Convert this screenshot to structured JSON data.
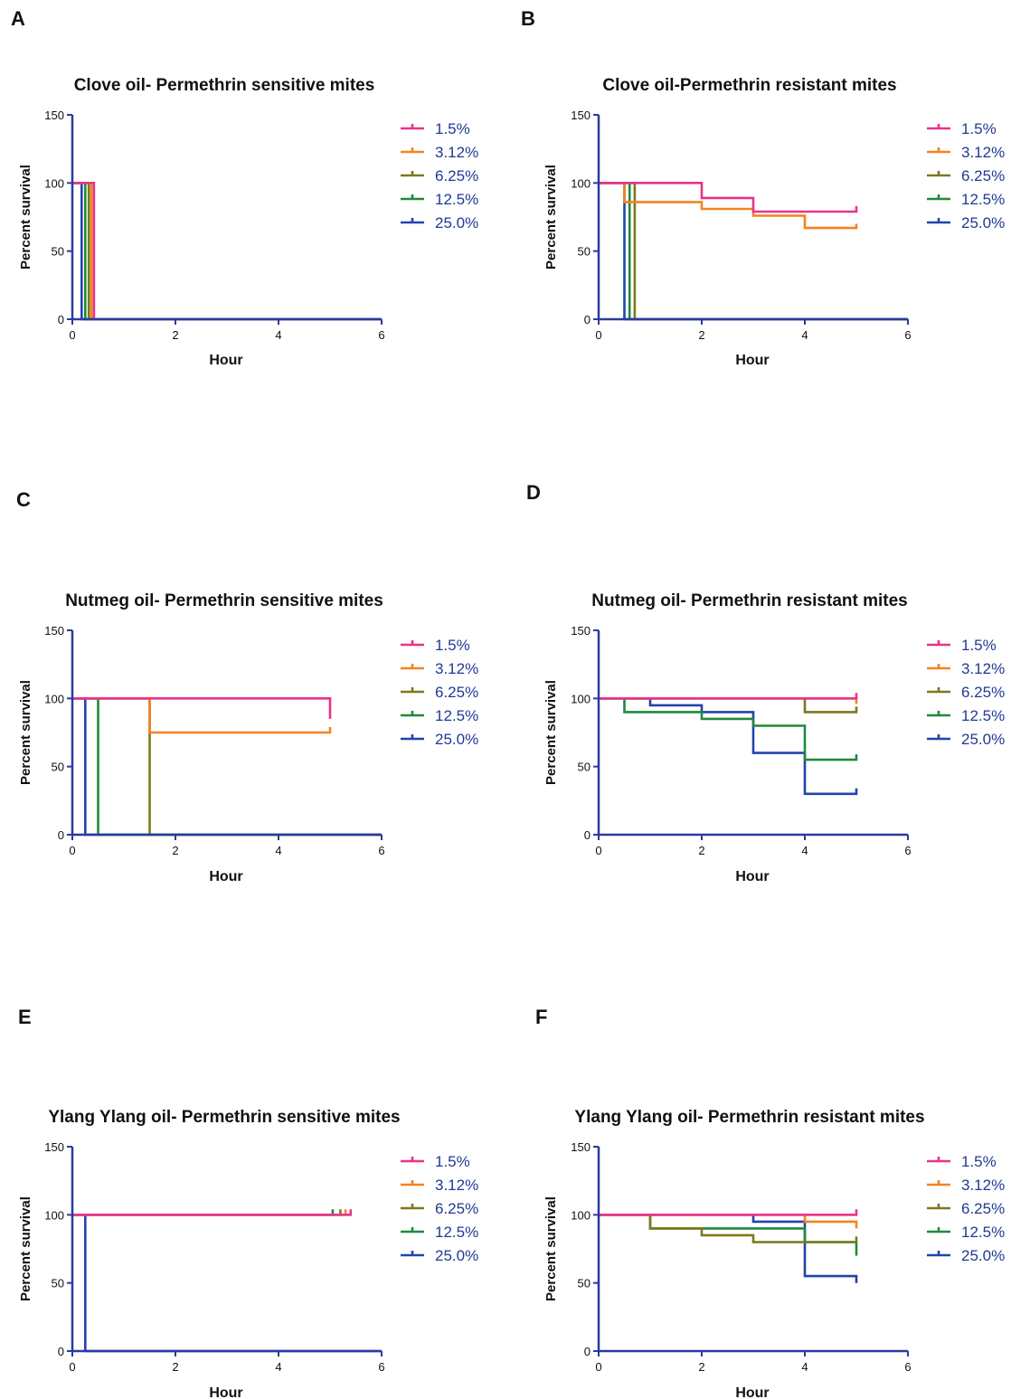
{
  "colors": {
    "axis": "#2a3aa0",
    "series": {
      "1.5%": "#e8338a",
      "3.12%": "#f58220",
      "6.25%": "#7a7a1e",
      "12.5%": "#1e8a3c",
      "25.0%": "#2244aa"
    }
  },
  "chart_data": [
    {
      "panel": "A",
      "type": "line",
      "title": "Clove oil- Permethrin sensitive mites",
      "xlabel": "Hour",
      "ylabel": "Percent survival",
      "xlim": [
        0,
        6
      ],
      "ylim": [
        0,
        150
      ],
      "xticks": [
        "0",
        "2",
        "4",
        "6"
      ],
      "yticks": [
        "0",
        "50",
        "100",
        "150"
      ],
      "legend_position": "right",
      "series": [
        {
          "name": "1.5%",
          "points": [
            [
              0,
              100
            ],
            [
              0.42,
              100
            ],
            [
              0.42,
              0
            ],
            [
              6,
              0
            ]
          ]
        },
        {
          "name": "3.12%",
          "points": [
            [
              0,
              100
            ],
            [
              0.37,
              100
            ],
            [
              0.37,
              0
            ],
            [
              6,
              0
            ]
          ]
        },
        {
          "name": "6.25%",
          "points": [
            [
              0,
              100
            ],
            [
              0.32,
              100
            ],
            [
              0.32,
              0
            ],
            [
              6,
              0
            ]
          ]
        },
        {
          "name": "12.5%",
          "points": [
            [
              0,
              100
            ],
            [
              0.25,
              100
            ],
            [
              0.25,
              0
            ],
            [
              6,
              0
            ]
          ]
        },
        {
          "name": "25.0%",
          "points": [
            [
              0,
              100
            ],
            [
              0.18,
              100
            ],
            [
              0.18,
              0
            ],
            [
              6,
              0
            ]
          ]
        }
      ]
    },
    {
      "panel": "B",
      "type": "line",
      "title": "Clove oil-Permethrin resistant mites",
      "xlabel": "Hour",
      "ylabel": "Percent survival",
      "xlim": [
        0,
        6
      ],
      "ylim": [
        0,
        150
      ],
      "xticks": [
        "0",
        "2",
        "4",
        "6"
      ],
      "yticks": [
        "0",
        "50",
        "100",
        "150"
      ],
      "legend_position": "right",
      "series": [
        {
          "name": "1.5%",
          "points": [
            [
              0,
              100
            ],
            [
              2,
              100
            ],
            [
              2,
              89
            ],
            [
              3,
              89
            ],
            [
              3,
              79
            ],
            [
              5,
              79
            ],
            [
              5,
              83
            ]
          ]
        },
        {
          "name": "3.12%",
          "points": [
            [
              0,
              100
            ],
            [
              0.5,
              100
            ],
            [
              0.5,
              86
            ],
            [
              2,
              86
            ],
            [
              2,
              81
            ],
            [
              3,
              81
            ],
            [
              3,
              76
            ],
            [
              4,
              76
            ],
            [
              4,
              67
            ],
            [
              5,
              67
            ],
            [
              5,
              70
            ]
          ]
        },
        {
          "name": "6.25%",
          "points": [
            [
              0,
              100
            ],
            [
              0.7,
              100
            ],
            [
              0.7,
              0
            ],
            [
              6,
              0
            ]
          ]
        },
        {
          "name": "12.5%",
          "points": [
            [
              0,
              100
            ],
            [
              0.6,
              100
            ],
            [
              0.6,
              0
            ],
            [
              6,
              0
            ]
          ]
        },
        {
          "name": "25.0%",
          "points": [
            [
              0,
              100
            ],
            [
              0.5,
              100
            ],
            [
              0.5,
              0
            ],
            [
              6,
              0
            ]
          ]
        }
      ]
    },
    {
      "panel": "C",
      "type": "line",
      "title": "Nutmeg oil- Permethrin sensitive mites",
      "xlabel": "Hour",
      "ylabel": "Percent survival",
      "xlim": [
        0,
        6
      ],
      "ylim": [
        0,
        150
      ],
      "xticks": [
        "0",
        "2",
        "4",
        "6"
      ],
      "yticks": [
        "0",
        "50",
        "100",
        "150"
      ],
      "legend_position": "right",
      "series": [
        {
          "name": "1.5%",
          "points": [
            [
              0,
              100
            ],
            [
              5,
              100
            ],
            [
              5,
              85
            ]
          ]
        },
        {
          "name": "3.12%",
          "points": [
            [
              0,
              100
            ],
            [
              1.5,
              100
            ],
            [
              1.5,
              75
            ],
            [
              5,
              75
            ],
            [
              5,
              79
            ]
          ]
        },
        {
          "name": "6.25%",
          "points": [
            [
              0,
              100
            ],
            [
              1.5,
              100
            ],
            [
              1.5,
              0
            ],
            [
              6,
              0
            ]
          ]
        },
        {
          "name": "12.5%",
          "points": [
            [
              0,
              100
            ],
            [
              0.5,
              100
            ],
            [
              0.5,
              0
            ],
            [
              6,
              0
            ]
          ]
        },
        {
          "name": "25.0%",
          "points": [
            [
              0,
              100
            ],
            [
              0.25,
              100
            ],
            [
              0.25,
              0
            ],
            [
              6,
              0
            ]
          ]
        }
      ]
    },
    {
      "panel": "D",
      "type": "line",
      "title": "Nutmeg oil- Permethrin resistant mites",
      "xlabel": "Hour",
      "ylabel": "Percent survival",
      "xlim": [
        0,
        6
      ],
      "ylim": [
        0,
        150
      ],
      "xticks": [
        "0",
        "2",
        "4",
        "6"
      ],
      "yticks": [
        "0",
        "50",
        "100",
        "150"
      ],
      "legend_position": "right",
      "series": [
        {
          "name": "1.5%",
          "points": [
            [
              0,
              100
            ],
            [
              5,
              100
            ],
            [
              5,
              104
            ]
          ]
        },
        {
          "name": "3.12%",
          "points": [
            [
              0,
              100
            ],
            [
              5,
              100
            ],
            [
              5,
              96
            ]
          ]
        },
        {
          "name": "6.25%",
          "points": [
            [
              0,
              100
            ],
            [
              4,
              100
            ],
            [
              4,
              90
            ],
            [
              5,
              90
            ],
            [
              5,
              94
            ]
          ]
        },
        {
          "name": "12.5%",
          "points": [
            [
              0,
              100
            ],
            [
              0.5,
              100
            ],
            [
              0.5,
              90
            ],
            [
              2,
              90
            ],
            [
              2,
              85
            ],
            [
              3,
              85
            ],
            [
              3,
              80
            ],
            [
              4,
              80
            ],
            [
              4,
              55
            ],
            [
              5,
              55
            ],
            [
              5,
              59
            ]
          ]
        },
        {
          "name": "25.0%",
          "points": [
            [
              0,
              100
            ],
            [
              1,
              100
            ],
            [
              1,
              95
            ],
            [
              2,
              95
            ],
            [
              2,
              90
            ],
            [
              3,
              90
            ],
            [
              3,
              60
            ],
            [
              4,
              60
            ],
            [
              4,
              30
            ],
            [
              5,
              30
            ],
            [
              5,
              34
            ]
          ]
        }
      ]
    },
    {
      "panel": "E",
      "type": "line",
      "title": "Ylang Ylang oil- Permethrin sensitive mites",
      "xlabel": "Hour",
      "ylabel": "Percent survival",
      "xlim": [
        0,
        6
      ],
      "ylim": [
        0,
        150
      ],
      "xticks": [
        "0",
        "2",
        "4",
        "6"
      ],
      "yticks": [
        "0",
        "50",
        "100",
        "150"
      ],
      "legend_position": "right",
      "series": [
        {
          "name": "1.5%",
          "points": [
            [
              0,
              100
            ],
            [
              5.4,
              100
            ],
            [
              5.4,
              104
            ]
          ]
        },
        {
          "name": "3.12%",
          "points": [
            [
              0,
              100
            ],
            [
              5.3,
              100
            ],
            [
              5.3,
              104
            ]
          ]
        },
        {
          "name": "6.25%",
          "points": [
            [
              0,
              100
            ],
            [
              5.2,
              100
            ],
            [
              5.2,
              104
            ]
          ]
        },
        {
          "name": "12.5%",
          "points": [
            [
              0,
              100
            ],
            [
              5.05,
              100
            ],
            [
              5.05,
              104
            ]
          ]
        },
        {
          "name": "25.0%",
          "points": [
            [
              0,
              100
            ],
            [
              0.25,
              100
            ],
            [
              0.25,
              0
            ],
            [
              6,
              0
            ]
          ]
        }
      ]
    },
    {
      "panel": "F",
      "type": "line",
      "title": "Ylang Ylang oil- Permethrin resistant mites",
      "xlabel": "Hour",
      "ylabel": "Percent survival",
      "xlim": [
        0,
        6
      ],
      "ylim": [
        0,
        150
      ],
      "xticks": [
        "0",
        "2",
        "4",
        "6"
      ],
      "yticks": [
        "0",
        "50",
        "100",
        "150"
      ],
      "legend_position": "right",
      "series": [
        {
          "name": "1.5%",
          "points": [
            [
              0,
              100
            ],
            [
              5,
              100
            ],
            [
              5,
              104
            ]
          ]
        },
        {
          "name": "3.12%",
          "points": [
            [
              0,
              100
            ],
            [
              4,
              100
            ],
            [
              4,
              95
            ],
            [
              5,
              95
            ],
            [
              5,
              90
            ]
          ]
        },
        {
          "name": "6.25%",
          "points": [
            [
              0,
              100
            ],
            [
              1,
              100
            ],
            [
              1,
              90
            ],
            [
              2,
              90
            ],
            [
              2,
              85
            ],
            [
              3,
              85
            ],
            [
              3,
              80
            ],
            [
              5,
              80
            ],
            [
              5,
              84
            ]
          ]
        },
        {
          "name": "12.5%",
          "points": [
            [
              0,
              100
            ],
            [
              1,
              100
            ],
            [
              1,
              90
            ],
            [
              4,
              90
            ],
            [
              4,
              80
            ],
            [
              5,
              80
            ],
            [
              5,
              70
            ]
          ]
        },
        {
          "name": "25.0%",
          "points": [
            [
              0,
              100
            ],
            [
              3,
              100
            ],
            [
              3,
              95
            ],
            [
              4,
              95
            ],
            [
              4,
              55
            ],
            [
              5,
              55
            ],
            [
              5,
              50
            ]
          ]
        }
      ]
    }
  ]
}
